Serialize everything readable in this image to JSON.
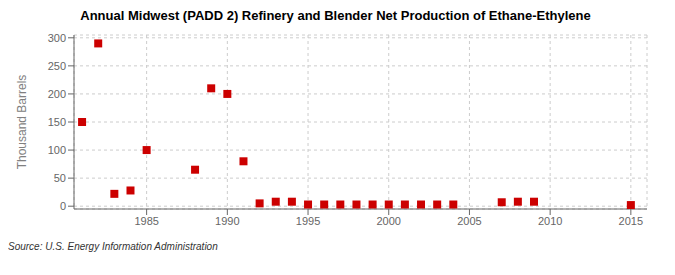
{
  "chart_data": {
    "type": "scatter",
    "title": "Annual Midwest (PADD 2) Refinery and Blender Net Production of Ethane-Ethylene",
    "y_label": "Thousand Barrels",
    "annotation": "Source: U.S. Energy Information Administration",
    "x": [
      1981,
      1982,
      1983,
      1984,
      1985,
      1988,
      1989,
      1990,
      1991,
      1992,
      1993,
      1994,
      1995,
      1996,
      1997,
      1998,
      1999,
      2000,
      2001,
      2002,
      2003,
      2004,
      2007,
      2008,
      2009,
      2015
    ],
    "values": [
      150,
      290,
      22,
      28,
      100,
      65,
      210,
      200,
      80,
      5,
      8,
      8,
      3,
      3,
      3,
      3,
      3,
      3,
      3,
      3,
      3,
      3,
      7,
      8,
      8,
      2
    ],
    "color": "#cc0000",
    "marker": "square",
    "xlim": [
      1980.5,
      2016
    ],
    "ylim": [
      -5,
      305
    ],
    "xticks": [
      1985,
      1990,
      1995,
      2000,
      2005,
      2010,
      2015
    ],
    "yticks": [
      0,
      50,
      100,
      150,
      200,
      250,
      300
    ],
    "grid": true
  }
}
